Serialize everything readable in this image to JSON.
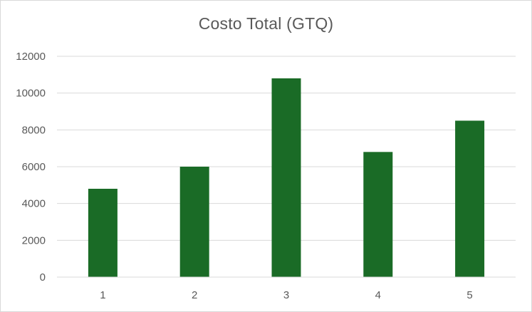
{
  "chart_data": {
    "type": "bar",
    "title": "Costo Total (GTQ)",
    "xlabel": "",
    "ylabel": "",
    "categories": [
      "1",
      "2",
      "3",
      "4",
      "5"
    ],
    "values": [
      4800,
      6000,
      10800,
      6800,
      8500
    ],
    "ylim": [
      0,
      12000
    ],
    "yticks": [
      "0",
      "2000",
      "4000",
      "6000",
      "8000",
      "10000",
      "12000"
    ],
    "grid": true,
    "legend": "none",
    "bar_color": "#1a6b26",
    "grid_color": "#d9d9d9",
    "axis_color": "#d9d9d9"
  }
}
